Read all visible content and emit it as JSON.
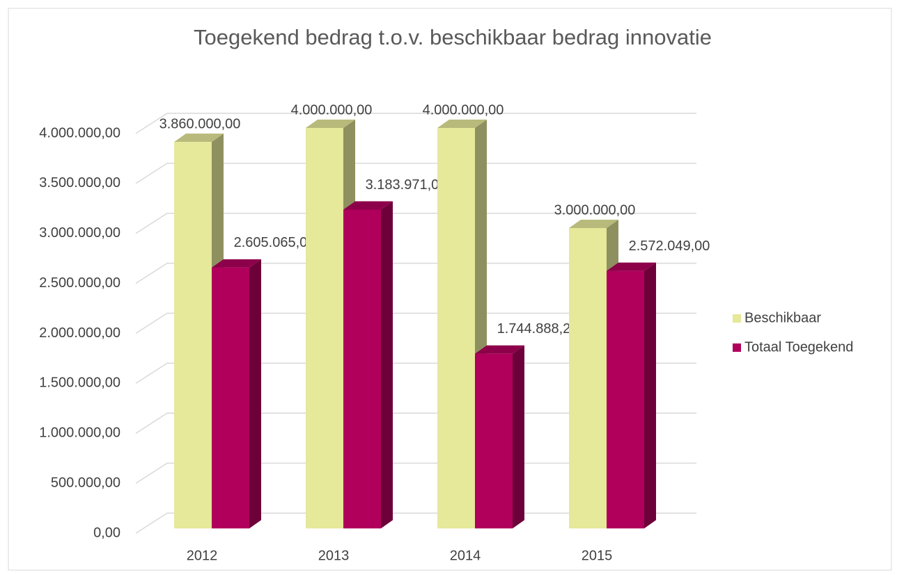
{
  "chart_data": {
    "type": "bar3d",
    "title": "Toegekend bedrag t.o.v. beschikbaar bedrag innovatie",
    "categories": [
      "2012",
      "2013",
      "2014",
      "2015"
    ],
    "series": [
      {
        "name": "Beschikbaar",
        "color": "#e6e89a",
        "values": [
          3860000,
          4000000,
          4000000,
          3000000
        ],
        "value_labels": [
          "3.860.000,00",
          "4.000.000,00",
          "4.000.000,00",
          "3.000.000,00"
        ]
      },
      {
        "name": "Totaal Toegekend",
        "color": "#b0005c",
        "values": [
          2605065,
          3183971,
          1744888.25,
          2572049
        ],
        "value_labels": [
          "2.605.065,00",
          "3.183.971,00",
          "1.744.888,25",
          "2.572.049,00"
        ]
      }
    ],
    "ylim": [
      0,
      4000000
    ],
    "yticks": [
      {
        "value": 0,
        "label": "0,00"
      },
      {
        "value": 500000,
        "label": "500.000,00"
      },
      {
        "value": 1000000,
        "label": "1.000.000,00"
      },
      {
        "value": 1500000,
        "label": "1.500.000,00"
      },
      {
        "value": 2000000,
        "label": "2.000.000,00"
      },
      {
        "value": 2500000,
        "label": "2.500.000,00"
      },
      {
        "value": 3000000,
        "label": "3.000.000,00"
      },
      {
        "value": 3500000,
        "label": "3.500.000,00"
      },
      {
        "value": 4000000,
        "label": "4.000.000,00"
      }
    ],
    "grid": true,
    "legend": "right"
  }
}
